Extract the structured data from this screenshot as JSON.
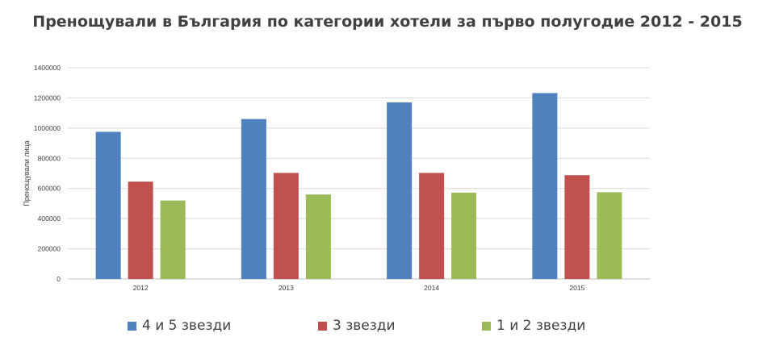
{
  "chart_data": {
    "type": "bar",
    "title": "Пренощували в България по категории хотели за първо полугодие 2012 - 2015",
    "xlabel": "",
    "ylabel": "Пренощували лица",
    "categories": [
      "2012",
      "2013",
      "2014",
      "2015"
    ],
    "series": [
      {
        "name": "4 и 5 звезди",
        "color": "#4F81BD",
        "values": [
          975000,
          1060000,
          1170000,
          1232000
        ]
      },
      {
        "name": "3 звезди",
        "color": "#C0504D",
        "values": [
          645000,
          703000,
          703000,
          688000
        ]
      },
      {
        "name": "1 и 2 звезди",
        "color": "#9BBB59",
        "values": [
          520000,
          560000,
          572000,
          575000
        ]
      }
    ],
    "ylim": [
      0,
      1400000
    ],
    "yticks": [
      "0",
      "200000",
      "400000",
      "600000",
      "800000",
      "1000000",
      "1200000",
      "1400000"
    ],
    "grid": true,
    "legend_position": "bottom"
  }
}
